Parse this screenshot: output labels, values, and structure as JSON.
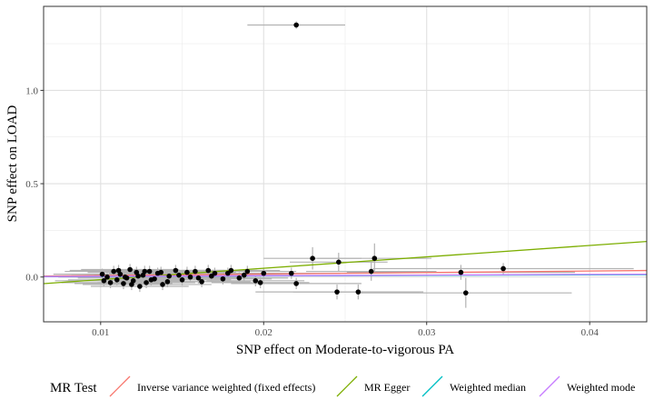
{
  "chart_data": {
    "type": "scatter",
    "xlabel": "SNP effect on Moderate-to-vigorous PA",
    "ylabel": "SNP effect on LOAD",
    "xlim": [
      0.0065,
      0.0435
    ],
    "ylim": [
      -0.24,
      1.45
    ],
    "x_ticks": [
      0.01,
      0.02,
      0.03,
      0.04
    ],
    "x_tick_labels": [
      "0.01",
      "0.02",
      "0.03",
      "0.04"
    ],
    "y_ticks": [
      0.0,
      0.5,
      1.0
    ],
    "y_tick_labels": [
      "0.0",
      "0.5",
      "1.0"
    ],
    "grid": true,
    "legend_position": "bottom",
    "legend_title": "MR Test",
    "points": [
      {
        "x": 0.022,
        "y": 1.35,
        "xerr": 0.003,
        "yerr": 0.02
      },
      {
        "x": 0.023,
        "y": 0.1,
        "xerr": 0.003,
        "yerr": 0.06
      },
      {
        "x": 0.0246,
        "y": 0.08,
        "xerr": 0.003,
        "yerr": 0.05
      },
      {
        "x": 0.0268,
        "y": 0.1,
        "xerr": 0.0035,
        "yerr": 0.08
      },
      {
        "x": 0.0266,
        "y": 0.03,
        "xerr": 0.004,
        "yerr": 0.05
      },
      {
        "x": 0.0245,
        "y": -0.08,
        "xerr": 0.005,
        "yerr": 0.04
      },
      {
        "x": 0.0258,
        "y": -0.08,
        "xerr": 0.004,
        "yerr": 0.04
      },
      {
        "x": 0.0324,
        "y": -0.085,
        "xerr": 0.0065,
        "yerr": 0.08
      },
      {
        "x": 0.0321,
        "y": 0.025,
        "xerr": 0.007,
        "yerr": 0.04
      },
      {
        "x": 0.0347,
        "y": 0.045,
        "xerr": 0.008,
        "yerr": 0.03
      },
      {
        "x": 0.022,
        "y": -0.035,
        "xerr": 0.004,
        "yerr": 0.03
      },
      {
        "x": 0.0217,
        "y": 0.02,
        "xerr": 0.003,
        "yerr": 0.03
      },
      {
        "x": 0.02,
        "y": 0.02,
        "xerr": 0.003,
        "yerr": 0.03
      },
      {
        "x": 0.0195,
        "y": -0.02,
        "xerr": 0.003,
        "yerr": 0.03
      },
      {
        "x": 0.019,
        "y": 0.03,
        "xerr": 0.003,
        "yerr": 0.03
      },
      {
        "x": 0.0185,
        "y": -0.005,
        "xerr": 0.003,
        "yerr": 0.03
      },
      {
        "x": 0.018,
        "y": 0.035,
        "xerr": 0.003,
        "yerr": 0.03
      },
      {
        "x": 0.0175,
        "y": -0.01,
        "xerr": 0.003,
        "yerr": 0.03
      },
      {
        "x": 0.017,
        "y": 0.02,
        "xerr": 0.003,
        "yerr": 0.03
      },
      {
        "x": 0.0166,
        "y": 0.035,
        "xerr": 0.003,
        "yerr": 0.03
      },
      {
        "x": 0.0162,
        "y": -0.025,
        "xerr": 0.003,
        "yerr": 0.03
      },
      {
        "x": 0.0158,
        "y": 0.03,
        "xerr": 0.003,
        "yerr": 0.03
      },
      {
        "x": 0.0155,
        "y": 0.0,
        "xerr": 0.003,
        "yerr": 0.03
      },
      {
        "x": 0.015,
        "y": -0.015,
        "xerr": 0.003,
        "yerr": 0.03
      },
      {
        "x": 0.0146,
        "y": 0.035,
        "xerr": 0.003,
        "yerr": 0.03
      },
      {
        "x": 0.0142,
        "y": 0.005,
        "xerr": 0.003,
        "yerr": 0.03
      },
      {
        "x": 0.0138,
        "y": -0.04,
        "xerr": 0.003,
        "yerr": 0.03
      },
      {
        "x": 0.0135,
        "y": 0.02,
        "xerr": 0.003,
        "yerr": 0.03
      },
      {
        "x": 0.0133,
        "y": -0.01,
        "xerr": 0.003,
        "yerr": 0.03
      },
      {
        "x": 0.013,
        "y": 0.03,
        "xerr": 0.003,
        "yerr": 0.03
      },
      {
        "x": 0.0128,
        "y": -0.03,
        "xerr": 0.003,
        "yerr": 0.03
      },
      {
        "x": 0.0126,
        "y": 0.01,
        "xerr": 0.003,
        "yerr": 0.03
      },
      {
        "x": 0.0124,
        "y": -0.05,
        "xerr": 0.003,
        "yerr": 0.03
      },
      {
        "x": 0.0122,
        "y": 0.025,
        "xerr": 0.003,
        "yerr": 0.03
      },
      {
        "x": 0.012,
        "y": -0.02,
        "xerr": 0.003,
        "yerr": 0.03
      },
      {
        "x": 0.0118,
        "y": 0.04,
        "xerr": 0.003,
        "yerr": 0.03
      },
      {
        "x": 0.0116,
        "y": -0.005,
        "xerr": 0.003,
        "yerr": 0.03
      },
      {
        "x": 0.0114,
        "y": -0.035,
        "xerr": 0.003,
        "yerr": 0.03
      },
      {
        "x": 0.0112,
        "y": 0.015,
        "xerr": 0.003,
        "yerr": 0.03
      },
      {
        "x": 0.011,
        "y": -0.015,
        "xerr": 0.003,
        "yerr": 0.03
      },
      {
        "x": 0.0108,
        "y": 0.03,
        "xerr": 0.003,
        "yerr": 0.03
      },
      {
        "x": 0.0106,
        "y": -0.03,
        "xerr": 0.003,
        "yerr": 0.03
      },
      {
        "x": 0.0104,
        "y": 0.0,
        "xerr": 0.003,
        "yerr": 0.03
      },
      {
        "x": 0.0102,
        "y": -0.02,
        "xerr": 0.003,
        "yerr": 0.03
      },
      {
        "x": 0.0101,
        "y": 0.015,
        "xerr": 0.003,
        "yerr": 0.03
      },
      {
        "x": 0.0111,
        "y": 0.035,
        "xerr": 0.003,
        "yerr": 0.03
      },
      {
        "x": 0.0115,
        "y": 0.0,
        "xerr": 0.003,
        "yerr": 0.03
      },
      {
        "x": 0.0119,
        "y": -0.04,
        "xerr": 0.003,
        "yerr": 0.03
      },
      {
        "x": 0.0123,
        "y": 0.005,
        "xerr": 0.003,
        "yerr": 0.03
      },
      {
        "x": 0.0127,
        "y": 0.03,
        "xerr": 0.003,
        "yerr": 0.03
      },
      {
        "x": 0.0131,
        "y": -0.015,
        "xerr": 0.003,
        "yerr": 0.03
      },
      {
        "x": 0.0137,
        "y": 0.025,
        "xerr": 0.003,
        "yerr": 0.03
      },
      {
        "x": 0.0141,
        "y": -0.025,
        "xerr": 0.003,
        "yerr": 0.03
      },
      {
        "x": 0.0148,
        "y": 0.01,
        "xerr": 0.003,
        "yerr": 0.03
      },
      {
        "x": 0.0153,
        "y": 0.025,
        "xerr": 0.003,
        "yerr": 0.03
      },
      {
        "x": 0.016,
        "y": -0.005,
        "xerr": 0.003,
        "yerr": 0.03
      },
      {
        "x": 0.0168,
        "y": 0.005,
        "xerr": 0.003,
        "yerr": 0.03
      },
      {
        "x": 0.0178,
        "y": 0.02,
        "xerr": 0.003,
        "yerr": 0.03
      },
      {
        "x": 0.0188,
        "y": 0.01,
        "xerr": 0.003,
        "yerr": 0.03
      },
      {
        "x": 0.0198,
        "y": -0.03,
        "xerr": 0.003,
        "yerr": 0.03
      }
    ],
    "series": [
      {
        "name": "Inverse variance weighted (fixed effects)",
        "intercept": 0.0,
        "slope": 0.8,
        "color": "#F8766D"
      },
      {
        "name": "MR Egger",
        "intercept": -0.075,
        "slope": 6.1,
        "color": "#7CAE00"
      },
      {
        "name": "Weighted median",
        "intercept": 0.0,
        "slope": 0.3,
        "color": "#00BFC4"
      },
      {
        "name": "Weighted mode",
        "intercept": 0.0,
        "slope": 0.35,
        "color": "#C77CFF"
      }
    ]
  }
}
